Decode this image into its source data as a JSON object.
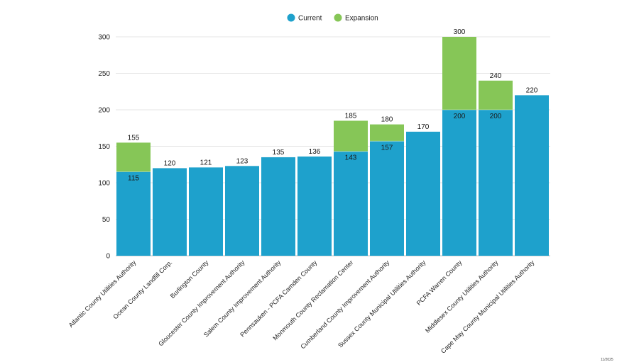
{
  "colors": {
    "current": "#1ea1cc",
    "expansion": "#86c657",
    "grid": "#e6e6e6",
    "axis": "#bfbfbf"
  },
  "chart_data": {
    "type": "bar",
    "stacked": true,
    "title": "",
    "xlabel": "",
    "ylabel": "",
    "ylim": [
      0,
      300
    ],
    "yticks": [
      0,
      50,
      100,
      150,
      200,
      250,
      300
    ],
    "grid": true,
    "legend_position": "top-center",
    "categories": [
      "Atlantic County Utilities Authority",
      "Ocean County Landfill Corp.",
      "Burlington County",
      "Gloucester County Improvement Authority",
      "Salem County Improvement Authority",
      "Pennsauken - PCFA Camden County",
      "Monmouth County Reclamation Center",
      "Cumberland County Improvement Authority",
      "Sussex County Municipal Utilities Authority",
      "PCFA Warren County",
      "Middlesex County Utilities Authority",
      "Cape May County Municipal Utilities Authority"
    ],
    "series": [
      {
        "name": "Current",
        "values": [
          115,
          120,
          121,
          123,
          135,
          136,
          143,
          157,
          170,
          200,
          200,
          220
        ]
      },
      {
        "name": "Expansion",
        "values": [
          40,
          0,
          0,
          0,
          0,
          0,
          42,
          23,
          0,
          100,
          40,
          0
        ]
      }
    ],
    "totals": [
      "155",
      "120",
      "121",
      "123",
      "135",
      "136",
      "185",
      "180",
      "170",
      "300",
      "240",
      "220"
    ],
    "inner_labels": [
      "115",
      "",
      "",
      "",
      "",
      "",
      "143",
      "157",
      "",
      "200",
      "200",
      ""
    ],
    "footnote": "11/2025"
  }
}
